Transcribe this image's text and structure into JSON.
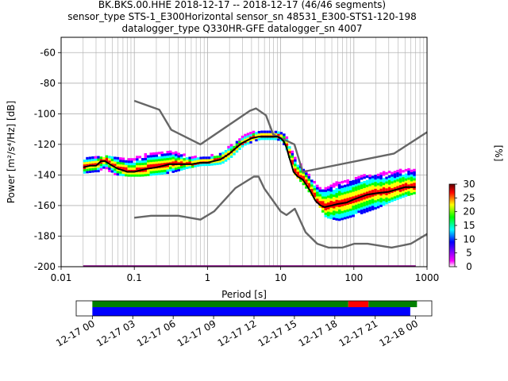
{
  "title_lines": [
    "BK.BKS.00.HHE   2018-12-17 -- 2018-12-17  (46/46 segments)",
    "sensor_type STS-1_E300Horizontal sensor_sn 48531_E300-STS1-120-198",
    "datalogger_type Q330HR-GFE datalogger_sn 4007"
  ],
  "chart_data": [
    {
      "type": "heatmap",
      "xlabel": "Period [s]",
      "ylabel": "Power [m²/s⁴/Hz] [dB]",
      "x_scale": "log",
      "xlim": [
        0.01,
        1000
      ],
      "ylim": [
        -200,
        -50
      ],
      "x_ticks": [
        {
          "v": 0.01,
          "label": "0.01"
        },
        {
          "v": 0.1,
          "label": "0.1"
        },
        {
          "v": 1,
          "label": "1"
        },
        {
          "v": 10,
          "label": "10"
        },
        {
          "v": 100,
          "label": "100"
        },
        {
          "v": 1000,
          "label": "1000"
        }
      ],
      "y_ticks": [
        -200,
        -180,
        -160,
        -140,
        -120,
        -100,
        -80,
        -60
      ],
      "grid": true,
      "colorbar": {
        "label": "[%]",
        "min": 0,
        "max": 30,
        "ticks": [
          0,
          5,
          10,
          15,
          20,
          25,
          30
        ],
        "colors": [
          "#ffffff",
          "#ff00ff",
          "#0000ff",
          "#00ffff",
          "#00ff00",
          "#ffff00",
          "#ff0000",
          "#000000"
        ]
      },
      "series": [
        {
          "role": "mode",
          "x": [
            0.02,
            0.025,
            0.03,
            0.035,
            0.04,
            0.05,
            0.06,
            0.07,
            0.08,
            0.1,
            0.12,
            0.15,
            0.2,
            0.25,
            0.3,
            0.4,
            0.5,
            0.6,
            0.8,
            1,
            1.2,
            1.5,
            2,
            2.5,
            3,
            4,
            5,
            6,
            7,
            8,
            9,
            10,
            11,
            12,
            13,
            14,
            15,
            17,
            20,
            25,
            30,
            35,
            40,
            50,
            60,
            80,
            100,
            150,
            200,
            300,
            500,
            700
          ],
          "y": [
            -135,
            -134,
            -134,
            -131,
            -131,
            -134,
            -136,
            -137,
            -138,
            -138,
            -137,
            -136,
            -135,
            -134,
            -133,
            -133,
            -133,
            -133,
            -132,
            -132,
            -131,
            -130,
            -126,
            -122,
            -119,
            -116,
            -115,
            -115,
            -115,
            -115,
            -115,
            -116,
            -118,
            -122,
            -128,
            -133,
            -138,
            -141,
            -143,
            -150,
            -157,
            -160,
            -161,
            -160,
            -159,
            -158,
            -156,
            -153,
            -152,
            -151,
            -148,
            -148
          ]
        },
        {
          "role": "noise_model_high",
          "x": [
            0.1,
            0.22,
            0.32,
            0.8,
            3.8,
            4.6,
            6.3,
            7.9,
            15.4,
            20,
            354.8,
            1000
          ],
          "y": [
            -91.5,
            -97.4,
            -110.5,
            -120,
            -98,
            -96.5,
            -101,
            -113.5,
            -120,
            -138,
            -126,
            -112
          ]
        },
        {
          "role": "noise_model_low",
          "x": [
            0.1,
            0.17,
            0.4,
            0.8,
            1.24,
            2.4,
            4.3,
            5,
            6,
            10,
            12,
            15.6,
            21.9,
            31.6,
            45,
            70,
            101,
            154,
            328,
            600,
            1000
          ],
          "y": [
            -168,
            -166.7,
            -166.7,
            -169.2,
            -163.7,
            -148.6,
            -141.1,
            -141.1,
            -149,
            -163.8,
            -166.2,
            -162.1,
            -177.5,
            -185,
            -187.5,
            -187.5,
            -185,
            -185,
            -187.5,
            -185,
            -178.6
          ]
        },
        {
          "role": "min_envelope",
          "x": [
            0.02,
            700
          ],
          "y": [
            -199.6,
            -199.6
          ]
        }
      ],
      "density_band": {
        "x": [
          0.02,
          0.03,
          0.05,
          0.08,
          0.12,
          0.2,
          0.3,
          0.5,
          0.8,
          1,
          1.5,
          2,
          3,
          5,
          8,
          10,
          12,
          15,
          20,
          30,
          40,
          60,
          100,
          200,
          300,
          500,
          700
        ],
        "lo": [
          -139,
          -138,
          -140,
          -141,
          -141,
          -140,
          -139,
          -136,
          -134,
          -134,
          -133,
          -129,
          -121,
          -117,
          -117,
          -118,
          -125,
          -140,
          -147,
          -158,
          -168,
          -170,
          -167,
          -162,
          -158,
          -154,
          -152
        ],
        "hi": [
          -128,
          -128,
          -129,
          -127,
          -125,
          -124,
          -125,
          -127,
          -128,
          -128,
          -125,
          -121,
          -114,
          -111,
          -111,
          -112,
          -116,
          -125,
          -134,
          -141,
          -145,
          -145,
          -142,
          -139,
          -136,
          -134,
          -133
        ]
      }
    },
    {
      "type": "bar",
      "orientation": "timeline",
      "tick_labels": [
        "12-17 00",
        "12-17 03",
        "12-17 06",
        "12-17 09",
        "12-17 12",
        "12-17 15",
        "12-17 18",
        "12-17 21",
        "12-18 00"
      ],
      "xlim_hours": [
        -1.2,
        25.2
      ],
      "segments": [
        {
          "row": "top",
          "start_hour": 0,
          "end_hour": 19,
          "color": "#008000"
        },
        {
          "row": "top",
          "start_hour": 19,
          "end_hour": 20.5,
          "color": "#ff0000"
        },
        {
          "row": "top",
          "start_hour": 20.5,
          "end_hour": 24.1,
          "color": "#008000"
        },
        {
          "row": "bottom",
          "start_hour": 0,
          "end_hour": 23.6,
          "color": "#0000ff"
        }
      ]
    }
  ]
}
